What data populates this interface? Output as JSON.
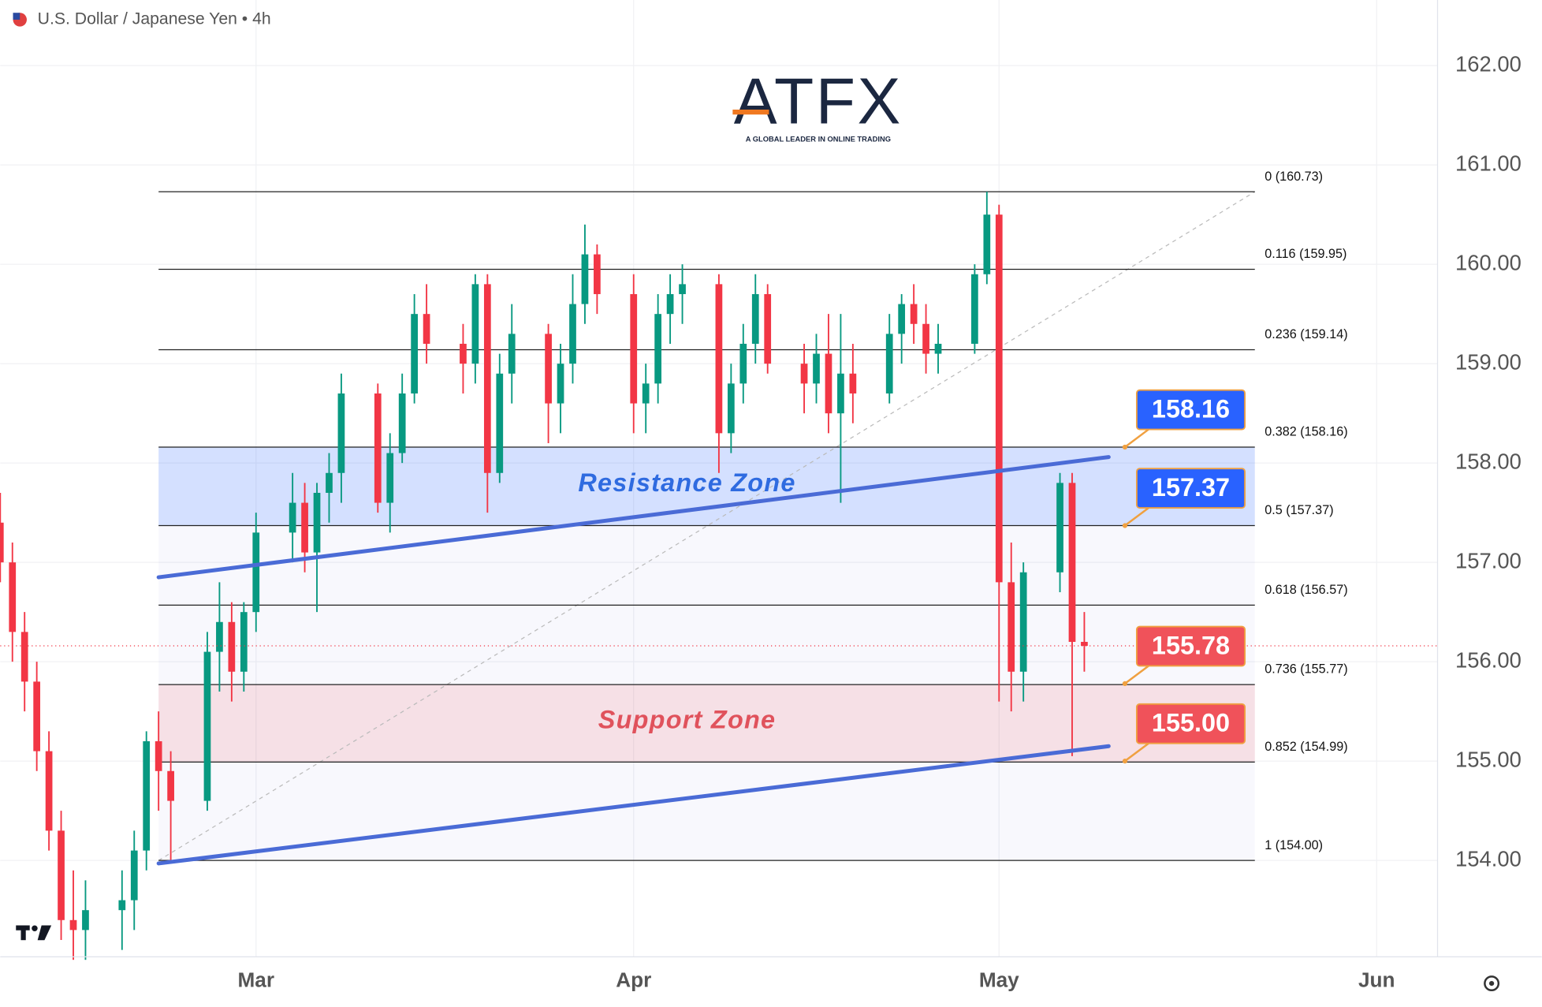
{
  "chart_data": {
    "type": "candlestick",
    "title": "U.S. Dollar / Japanese Yen • 4h",
    "logo": {
      "name": "ATFX",
      "tagline": "A GLOBAL LEADER IN ONLINE TRADING"
    },
    "xlim": [
      "02-09",
      "06-06"
    ],
    "xticks": [
      {
        "value": "03-01",
        "label": "Mar"
      },
      {
        "value": "04-01",
        "label": "Apr"
      },
      {
        "value": "05-01",
        "label": "May"
      },
      {
        "value": "06-01",
        "label": "Jun"
      }
    ],
    "ylim": [
      153.03,
      162.66
    ],
    "yticks": [
      {
        "value": 154,
        "label": "154.00"
      },
      {
        "value": 155,
        "label": "155.00"
      },
      {
        "value": 156,
        "label": "156.00"
      },
      {
        "value": 157,
        "label": "157.00"
      },
      {
        "value": 158,
        "label": "158.00"
      },
      {
        "value": 159,
        "label": "159.00"
      },
      {
        "value": 160,
        "label": "160.00"
      },
      {
        "value": 161,
        "label": "161.00"
      },
      {
        "value": 162,
        "label": "162.00"
      }
    ],
    "grid": true,
    "up_color": "#089981",
    "down_color": "#f23645",
    "last_price": 156.16,
    "candles": [
      {
        "x": "02-09",
        "open": 157.4,
        "high": 157.7,
        "low": 156.8,
        "close": 157.0
      },
      {
        "x": "02-10",
        "open": 157.0,
        "high": 157.2,
        "low": 156.0,
        "close": 156.3
      },
      {
        "x": "02-11",
        "open": 156.3,
        "high": 156.5,
        "low": 155.5,
        "close": 155.8
      },
      {
        "x": "02-12",
        "open": 155.8,
        "high": 156.0,
        "low": 154.9,
        "close": 155.1
      },
      {
        "x": "02-13",
        "open": 155.1,
        "high": 155.3,
        "low": 154.1,
        "close": 154.3
      },
      {
        "x": "02-14",
        "open": 154.3,
        "high": 154.5,
        "low": 153.2,
        "close": 153.4
      },
      {
        "x": "02-15",
        "open": 153.4,
        "high": 153.9,
        "low": 153.0,
        "close": 153.3
      },
      {
        "x": "02-16",
        "open": 153.3,
        "high": 153.8,
        "low": 153.0,
        "close": 153.5
      },
      {
        "x": "02-19",
        "open": 153.5,
        "high": 153.9,
        "low": 153.1,
        "close": 153.6
      },
      {
        "x": "02-20",
        "open": 153.6,
        "high": 154.3,
        "low": 153.3,
        "close": 154.1
      },
      {
        "x": "02-21",
        "open": 154.1,
        "high": 155.3,
        "low": 153.9,
        "close": 155.2
      },
      {
        "x": "02-22",
        "open": 155.2,
        "high": 155.5,
        "low": 154.5,
        "close": 154.9
      },
      {
        "x": "02-23",
        "open": 154.9,
        "high": 155.1,
        "low": 154.0,
        "close": 154.6
      },
      {
        "x": "02-26",
        "open": 154.6,
        "high": 156.3,
        "low": 154.5,
        "close": 156.1
      },
      {
        "x": "02-27",
        "open": 156.1,
        "high": 156.8,
        "low": 155.7,
        "close": 156.4
      },
      {
        "x": "02-28",
        "open": 156.4,
        "high": 156.6,
        "low": 155.6,
        "close": 155.9
      },
      {
        "x": "02-29",
        "open": 155.9,
        "high": 156.6,
        "low": 155.7,
        "close": 156.5
      },
      {
        "x": "03-01",
        "open": 156.5,
        "high": 157.5,
        "low": 156.3,
        "close": 157.3
      },
      {
        "x": "03-04",
        "open": 157.3,
        "high": 157.9,
        "low": 157.0,
        "close": 157.6
      },
      {
        "x": "03-05",
        "open": 157.6,
        "high": 157.8,
        "low": 156.9,
        "close": 157.1
      },
      {
        "x": "03-06",
        "open": 157.1,
        "high": 157.8,
        "low": 156.5,
        "close": 157.7
      },
      {
        "x": "03-07",
        "open": 157.7,
        "high": 158.1,
        "low": 157.4,
        "close": 157.9
      },
      {
        "x": "03-08",
        "open": 157.9,
        "high": 158.9,
        "low": 157.6,
        "close": 158.7
      },
      {
        "x": "03-11",
        "open": 158.7,
        "high": 158.8,
        "low": 157.5,
        "close": 157.6
      },
      {
        "x": "03-12",
        "open": 157.6,
        "high": 158.3,
        "low": 157.3,
        "close": 158.1
      },
      {
        "x": "03-13",
        "open": 158.1,
        "high": 158.9,
        "low": 158.0,
        "close": 158.7
      },
      {
        "x": "03-14",
        "open": 158.7,
        "high": 159.7,
        "low": 158.6,
        "close": 159.5
      },
      {
        "x": "03-15",
        "open": 159.5,
        "high": 159.8,
        "low": 159.0,
        "close": 159.2
      },
      {
        "x": "03-18",
        "open": 159.2,
        "high": 159.4,
        "low": 158.7,
        "close": 159.0
      },
      {
        "x": "03-19",
        "open": 159.0,
        "high": 159.9,
        "low": 158.8,
        "close": 159.8
      },
      {
        "x": "03-20",
        "open": 159.8,
        "high": 159.9,
        "low": 157.5,
        "close": 157.9
      },
      {
        "x": "03-21",
        "open": 157.9,
        "high": 159.1,
        "low": 157.8,
        "close": 158.9
      },
      {
        "x": "03-22",
        "open": 158.9,
        "high": 159.6,
        "low": 158.6,
        "close": 159.3
      },
      {
        "x": "03-25",
        "open": 159.3,
        "high": 159.4,
        "low": 158.2,
        "close": 158.6
      },
      {
        "x": "03-26",
        "open": 158.6,
        "high": 159.2,
        "low": 158.3,
        "close": 159.0
      },
      {
        "x": "03-27",
        "open": 159.0,
        "high": 159.9,
        "low": 158.8,
        "close": 159.6
      },
      {
        "x": "03-28",
        "open": 159.6,
        "high": 160.4,
        "low": 159.4,
        "close": 160.1
      },
      {
        "x": "03-29",
        "open": 160.1,
        "high": 160.2,
        "low": 159.5,
        "close": 159.7
      },
      {
        "x": "04-01",
        "open": 159.7,
        "high": 159.9,
        "low": 158.3,
        "close": 158.6
      },
      {
        "x": "04-02",
        "open": 158.6,
        "high": 159.0,
        "low": 158.3,
        "close": 158.8
      },
      {
        "x": "04-03",
        "open": 158.8,
        "high": 159.7,
        "low": 158.6,
        "close": 159.5
      },
      {
        "x": "04-04",
        "open": 159.5,
        "high": 159.9,
        "low": 159.2,
        "close": 159.7
      },
      {
        "x": "04-05",
        "open": 159.7,
        "high": 160.0,
        "low": 159.4,
        "close": 159.8
      },
      {
        "x": "04-08",
        "open": 159.8,
        "high": 159.9,
        "low": 157.9,
        "close": 158.3
      },
      {
        "x": "04-09",
        "open": 158.3,
        "high": 159.0,
        "low": 158.1,
        "close": 158.8
      },
      {
        "x": "04-10",
        "open": 158.8,
        "high": 159.4,
        "low": 158.6,
        "close": 159.2
      },
      {
        "x": "04-11",
        "open": 159.2,
        "high": 159.9,
        "low": 159.0,
        "close": 159.7
      },
      {
        "x": "04-12",
        "open": 159.7,
        "high": 159.8,
        "low": 158.9,
        "close": 159.0
      },
      {
        "x": "04-15",
        "open": 159.0,
        "high": 159.2,
        "low": 158.5,
        "close": 158.8
      },
      {
        "x": "04-16",
        "open": 158.8,
        "high": 159.3,
        "low": 158.6,
        "close": 159.1
      },
      {
        "x": "04-17",
        "open": 159.1,
        "high": 159.5,
        "low": 158.3,
        "close": 158.5
      },
      {
        "x": "04-18",
        "open": 158.5,
        "high": 159.5,
        "low": 157.6,
        "close": 158.9
      },
      {
        "x": "04-19",
        "open": 158.9,
        "high": 159.2,
        "low": 158.4,
        "close": 158.7
      },
      {
        "x": "04-22",
        "open": 158.7,
        "high": 159.5,
        "low": 158.6,
        "close": 159.3
      },
      {
        "x": "04-23",
        "open": 159.3,
        "high": 159.7,
        "low": 159.0,
        "close": 159.6
      },
      {
        "x": "04-24",
        "open": 159.6,
        "high": 159.8,
        "low": 159.2,
        "close": 159.4
      },
      {
        "x": "04-25",
        "open": 159.4,
        "high": 159.6,
        "low": 158.9,
        "close": 159.1
      },
      {
        "x": "04-26",
        "open": 159.1,
        "high": 159.4,
        "low": 158.9,
        "close": 159.2
      },
      {
        "x": "04-29",
        "open": 159.2,
        "high": 160.0,
        "low": 159.1,
        "close": 159.9
      },
      {
        "x": "04-30",
        "open": 159.9,
        "high": 160.73,
        "low": 159.8,
        "close": 160.5
      },
      {
        "x": "05-01",
        "open": 160.5,
        "high": 160.6,
        "low": 155.6,
        "close": 156.8
      },
      {
        "x": "05-02",
        "open": 156.8,
        "high": 157.2,
        "low": 155.5,
        "close": 155.9
      },
      {
        "x": "05-03",
        "open": 155.9,
        "high": 157.0,
        "low": 155.6,
        "close": 156.9
      },
      {
        "x": "05-06",
        "open": 156.9,
        "high": 157.9,
        "low": 156.7,
        "close": 157.8
      },
      {
        "x": "05-07",
        "open": 157.8,
        "high": 157.9,
        "low": 155.05,
        "close": 156.2
      },
      {
        "x": "05-08",
        "open": 156.2,
        "high": 156.5,
        "low": 155.9,
        "close": 156.16
      }
    ],
    "fib": {
      "start": "02-22",
      "end": "05-22",
      "levels": [
        {
          "label": "0 (160.73)",
          "price": 160.73
        },
        {
          "label": "0.116 (159.95)",
          "price": 159.95
        },
        {
          "label": "0.236 (159.14)",
          "price": 159.14
        },
        {
          "label": "0.382 (158.16)",
          "price": 158.16
        },
        {
          "label": "0.5 (157.37)",
          "price": 157.37
        },
        {
          "label": "0.618 (156.57)",
          "price": 156.57
        },
        {
          "label": "0.736 (155.77)",
          "price": 155.77
        },
        {
          "label": "0.852 (154.99)",
          "price": 154.99
        },
        {
          "label": "1 (154.00)",
          "price": 154.0
        }
      ]
    },
    "zones": [
      {
        "text": "Resistance Zone",
        "low": 157.37,
        "high": 158.16,
        "fill": "rgba(41,98,255,0.2)",
        "color": "#2f6be0"
      },
      {
        "text": "Support Zone",
        "low": 154.99,
        "high": 155.77,
        "fill": "rgba(242,54,69,0.12)",
        "color": "#e0525c"
      }
    ],
    "trendlines": [
      {
        "color": "#4a6bd6",
        "points": [
          [
            "02-22",
            156.85
          ],
          [
            "05-10",
            158.06
          ]
        ]
      },
      {
        "color": "#4a6bd6",
        "points": [
          [
            "02-22",
            153.97
          ],
          [
            "05-10",
            155.15
          ]
        ]
      }
    ],
    "annotations": [
      {
        "text": "158.16",
        "price": 158.16,
        "color": "#2962ff"
      },
      {
        "text": "157.37",
        "price": 157.37,
        "color": "#2962ff"
      },
      {
        "text": "155.78",
        "price": 155.78,
        "color": "#f0525a"
      },
      {
        "text": "155.00",
        "price": 155.0,
        "color": "#f0525a"
      }
    ]
  }
}
